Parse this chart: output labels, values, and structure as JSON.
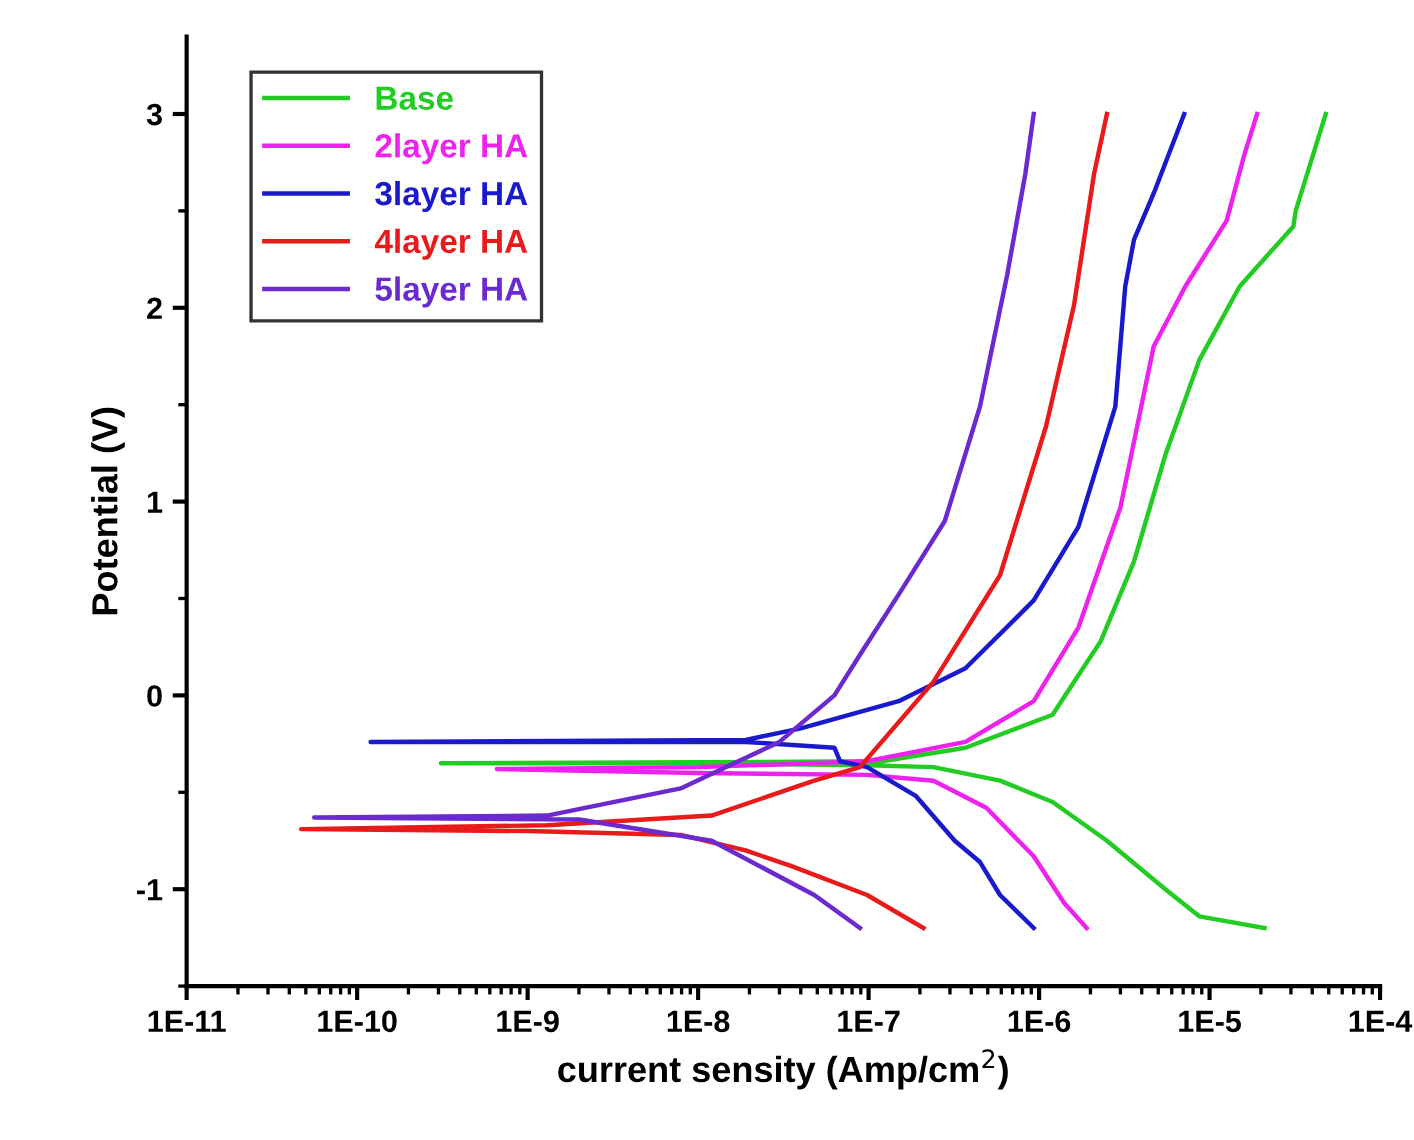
{
  "chart_data": {
    "type": "line",
    "xlabel": "current sensity (Amp/cm$^{2}$)",
    "ylabel": "Potential (V)",
    "log": "x",
    "grid": false,
    "legend": "top left",
    "xlim": [
      1e-11,
      0.0001
    ],
    "xticks": [
      {
        "value": 1e-11,
        "label": "1E-11"
      },
      {
        "value": 1e-10,
        "label": "1E-10"
      },
      {
        "value": 1e-09,
        "label": "1E-9"
      },
      {
        "value": 1e-08,
        "label": "1E-8"
      },
      {
        "value": 1e-07,
        "label": "1E-7"
      },
      {
        "value": 1e-06,
        "label": "1E-6"
      },
      {
        "value": 1e-05,
        "label": "1E-5"
      },
      {
        "value": 0.0001,
        "label": "1E-4"
      }
    ],
    "ylim": [
      -1.5,
      3.4
    ],
    "yticks": [
      -1,
      0,
      1,
      2,
      3
    ],
    "series": [
      {
        "name": "Base",
        "color": "#22cc22",
        "x": [
          2.1e-05,
          8.7e-06,
          5.5e-06,
          2.5e-06,
          1.2e-06,
          5.9e-07,
          2.4e-07,
          9.8e-08,
          1e-08,
          3.1e-10,
          1e-08,
          1.2e-07,
          3.7e-07,
          1.2e-06,
          1.4e-06,
          2.3e-06,
          3.6e-06,
          5.5e-06,
          8.7e-06,
          1.5e-05,
          3.1e-05,
          3.2e-05,
          4.8e-05
        ],
        "values": [
          -1.2,
          -1.14,
          -1.0,
          -0.75,
          -0.55,
          -0.44,
          -0.37,
          -0.36,
          -0.35,
          -0.35,
          -0.345,
          -0.34,
          -0.27,
          -0.1,
          -0.01,
          0.28,
          0.69,
          1.24,
          1.73,
          2.11,
          2.42,
          2.5,
          3.0
        ]
      },
      {
        "name": "2layer HA",
        "color": "#ee22ee",
        "x": [
          1.9e-06,
          1.4e-06,
          9.3e-07,
          4.9e-07,
          2.4e-07,
          9.8e-08,
          1e-08,
          6.6e-10,
          1e-08,
          9.8e-08,
          3.7e-07,
          9.3e-07,
          1.7e-06,
          3e-06,
          4.7e-06,
          7.2e-06,
          1.26e-05,
          1.6e-05,
          1.9e-05
        ],
        "values": [
          -1.2,
          -1.07,
          -0.83,
          -0.58,
          -0.44,
          -0.41,
          -0.4,
          -0.38,
          -0.37,
          -0.34,
          -0.24,
          -0.03,
          0.35,
          0.97,
          1.8,
          2.11,
          2.45,
          2.79,
          3.0
        ]
      },
      {
        "name": "3layer HA",
        "color": "#1a1acc",
        "x": [
          9.3e-07,
          5.9e-07,
          4.5e-07,
          3.2e-07,
          1.9e-07,
          9.8e-08,
          6.8e-08,
          6.3e-08,
          1.9e-08,
          1.2e-10,
          1.9e-08,
          4e-08,
          1.5e-07,
          3.7e-07,
          9.3e-07,
          1.7e-06,
          2.8e-06,
          3.2e-06,
          3.6e-06,
          4.7e-06,
          7.1e-06
        ],
        "values": [
          -1.2,
          -1.03,
          -0.86,
          -0.75,
          -0.52,
          -0.37,
          -0.34,
          -0.27,
          -0.24,
          -0.24,
          -0.23,
          -0.17,
          -0.03,
          0.14,
          0.49,
          0.87,
          1.49,
          2.11,
          2.35,
          2.59,
          3.0
        ]
      },
      {
        "name": "4layer HA",
        "color": "#e81a1a",
        "x": [
          2.1e-07,
          9.8e-08,
          3.5e-08,
          1.9e-08,
          7.9e-09,
          1e-09,
          4.7e-11,
          1.3e-09,
          1.2e-08,
          4.8e-08,
          8.9e-08,
          2.4e-07,
          5.9e-07,
          1.1e-06,
          1.6e-06,
          2.1e-06,
          2.5e-06
        ],
        "values": [
          -1.2,
          -1.03,
          -0.88,
          -0.8,
          -0.72,
          -0.7,
          -0.69,
          -0.67,
          -0.62,
          -0.44,
          -0.37,
          0.07,
          0.62,
          1.39,
          2.01,
          2.69,
          3.0
        ]
      },
      {
        "name": "5layer HA",
        "color": "#6a2ad0",
        "x": [
          8.9e-08,
          4.8e-08,
          1.2e-08,
          2e-09,
          5.6e-11,
          1.3e-09,
          7.9e-09,
          3e-08,
          6.3e-08,
          8.9e-08,
          1.5e-07,
          2.8e-07,
          4.5e-07,
          6.5e-07,
          8.3e-07,
          9.3e-07
        ],
        "values": [
          -1.2,
          -1.03,
          -0.75,
          -0.64,
          -0.63,
          -0.62,
          -0.48,
          -0.24,
          0.0,
          0.21,
          0.52,
          0.9,
          1.49,
          2.17,
          2.69,
          3.0
        ]
      }
    ]
  }
}
